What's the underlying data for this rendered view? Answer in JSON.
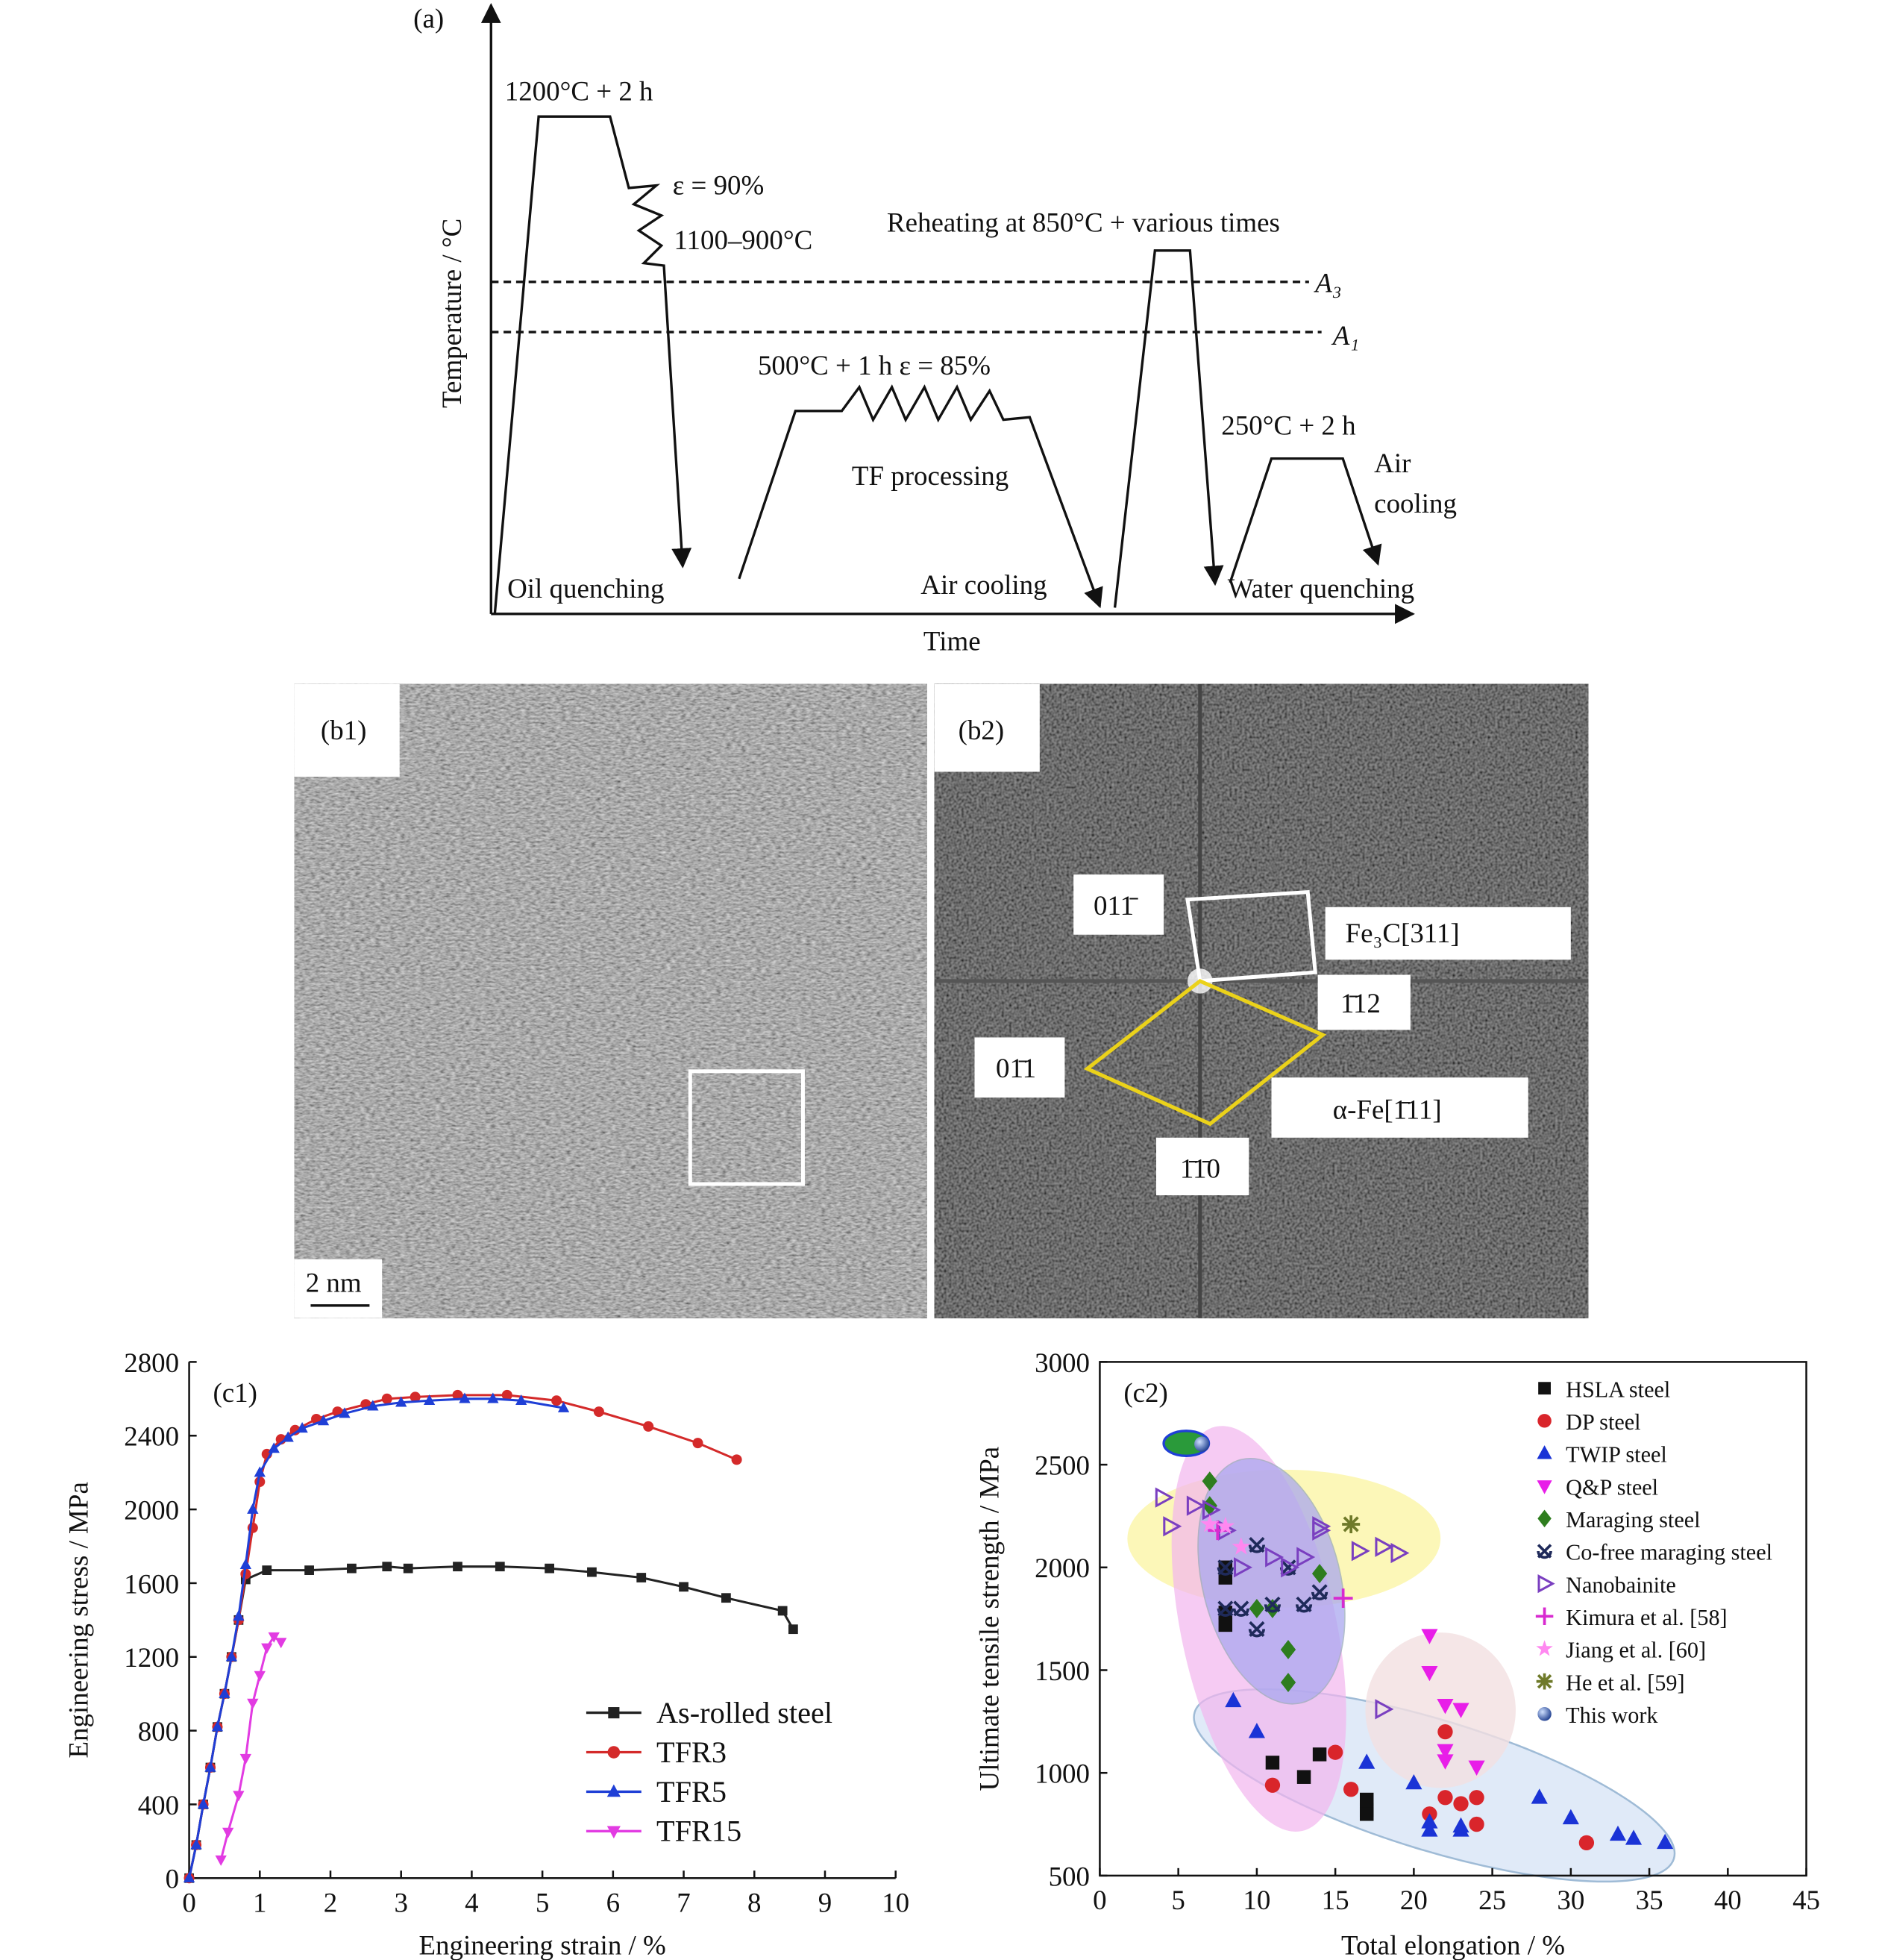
{
  "diagram": {
    "label": "(a)",
    "y_label": "Temperature / °C",
    "x_label": "Time",
    "annotations": [
      "1200°C + 2 h",
      "ε = 90%",
      "1100–900°C",
      "Reheating at 850°C + various times",
      "A₃",
      "A₁",
      "500°C + 1 h  ε = 85%",
      "TF processing",
      "250°C + 2 h",
      "Air",
      "cooling",
      "Oil quenching",
      "Air cooling",
      "Water quenching"
    ]
  },
  "micrographs": {
    "b1_label": "(b1)",
    "scale_bar": "2 nm",
    "b2_label": "(b2)",
    "spots": [
      "011̄",
      "1̄12",
      "01̄1",
      "1̄1̄0"
    ],
    "zones": [
      "Fe₃C[311]",
      "α-Fe[1̄11]"
    ]
  },
  "chart_data": [
    {
      "type": "line",
      "panel": "(c1)",
      "x_label": "Engineering strain / %",
      "y_label": "Engineering stress / MPa",
      "xlim": [
        0,
        10
      ],
      "xticks": [
        0,
        1,
        2,
        3,
        4,
        5,
        6,
        7,
        8,
        9,
        10
      ],
      "ylim": [
        0,
        2800
      ],
      "yticks": [
        0,
        400,
        800,
        1200,
        1600,
        2000,
        2400,
        2800
      ],
      "legend": "lower right",
      "series": [
        {
          "name": "As-rolled steel",
          "color": "#222222",
          "marker": "square",
          "x": [
            0,
            0.1,
            0.2,
            0.3,
            0.4,
            0.5,
            0.6,
            0.7,
            0.8,
            1.1,
            1.7,
            2.3,
            2.8,
            3.1,
            3.8,
            4.4,
            5.1,
            5.7,
            6.4,
            7.0,
            7.6,
            8.4,
            8.55
          ],
          "values": [
            0,
            180,
            400,
            600,
            820,
            1000,
            1200,
            1400,
            1620,
            1670,
            1670,
            1680,
            1690,
            1680,
            1690,
            1690,
            1680,
            1660,
            1630,
            1580,
            1520,
            1450,
            1350
          ]
        },
        {
          "name": "TFR3",
          "color": "#d42a2a",
          "marker": "circle",
          "x": [
            0,
            0.1,
            0.2,
            0.3,
            0.4,
            0.5,
            0.6,
            0.7,
            0.8,
            0.9,
            1.0,
            1.1,
            1.3,
            1.5,
            1.8,
            2.1,
            2.5,
            2.8,
            3.2,
            3.8,
            4.5,
            5.2,
            5.8,
            6.5,
            7.2,
            7.75
          ],
          "values": [
            0,
            180,
            400,
            600,
            820,
            1000,
            1200,
            1400,
            1650,
            1900,
            2150,
            2300,
            2380,
            2430,
            2490,
            2530,
            2570,
            2600,
            2610,
            2620,
            2620,
            2590,
            2530,
            2450,
            2360,
            2270
          ]
        },
        {
          "name": "TFR5",
          "color": "#1f3fd6",
          "marker": "triangle-up",
          "x": [
            0,
            0.1,
            0.2,
            0.3,
            0.4,
            0.5,
            0.6,
            0.7,
            0.8,
            0.9,
            1.0,
            1.2,
            1.4,
            1.6,
            1.9,
            2.2,
            2.6,
            3.0,
            3.4,
            3.9,
            4.3,
            4.7,
            5.3
          ],
          "values": [
            0,
            180,
            400,
            600,
            820,
            1000,
            1200,
            1420,
            1700,
            2000,
            2200,
            2330,
            2390,
            2440,
            2480,
            2520,
            2560,
            2580,
            2590,
            2600,
            2600,
            2590,
            2550
          ]
        },
        {
          "name": "TFR15",
          "color": "#e23be2",
          "marker": "triangle-down",
          "x": [
            0.45,
            0.55,
            0.7,
            0.8,
            0.9,
            1.0,
            1.1,
            1.2,
            1.3
          ],
          "values": [
            100,
            250,
            450,
            650,
            950,
            1100,
            1250,
            1310,
            1280
          ]
        }
      ]
    },
    {
      "type": "scatter",
      "panel": "(c2)",
      "x_label": "Total elongation / %",
      "y_label": "Ultimate tensile strength / MPa",
      "xlim": [
        0,
        45
      ],
      "xticks": [
        0,
        5,
        10,
        15,
        20,
        25,
        30,
        35,
        40,
        45
      ],
      "ylim": [
        500,
        3000
      ],
      "yticks": [
        500,
        1000,
        1500,
        2000,
        2500,
        3000
      ],
      "legend": "upper right",
      "series": [
        {
          "name": "HSLA steel",
          "color": "#111111",
          "marker": "square",
          "x": [
            8,
            8,
            8,
            8,
            11,
            13,
            14,
            17,
            17,
            17
          ],
          "values": [
            2000,
            1950,
            1780,
            1720,
            1050,
            980,
            1090,
            870,
            820,
            800
          ]
        },
        {
          "name": "DP steel",
          "color": "#d9252b",
          "marker": "circle",
          "x": [
            11,
            15,
            16,
            21,
            22,
            22,
            23,
            24,
            24,
            31
          ],
          "values": [
            940,
            1100,
            920,
            800,
            880,
            1200,
            850,
            880,
            750,
            660
          ]
        },
        {
          "name": "TWIP steel",
          "color": "#1a33d6",
          "marker": "triangle-up",
          "x": [
            8.5,
            10,
            17,
            20,
            21,
            21,
            23,
            23,
            28,
            30,
            33,
            34,
            36
          ],
          "values": [
            1350,
            1200,
            1050,
            950,
            720,
            760,
            720,
            740,
            880,
            780,
            700,
            680,
            660
          ]
        },
        {
          "name": "Q&P steel",
          "color": "#e81ee8",
          "marker": "triangle-down",
          "x": [
            21,
            21,
            22,
            23,
            22,
            24,
            22
          ],
          "values": [
            1670,
            1490,
            1330,
            1310,
            1110,
            1030,
            1060
          ]
        },
        {
          "name": "Maraging steel",
          "color": "#2e7d1e",
          "marker": "diamond",
          "x": [
            7,
            7,
            10,
            12,
            12,
            14,
            11
          ],
          "values": [
            2420,
            2300,
            1800,
            1600,
            1440,
            1970,
            1800
          ]
        },
        {
          "name": "Co-free maraging steel",
          "color": "#1f2a5a",
          "marker": "xcross",
          "x": [
            8,
            9,
            10,
            10,
            11,
            13,
            8,
            14,
            12
          ],
          "values": [
            2000,
            1800,
            2110,
            1700,
            1820,
            1820,
            1800,
            1880,
            2000
          ]
        },
        {
          "name": "Nanobainite",
          "color": "#7a3fc0",
          "marker": "triangle-right",
          "x": [
            4,
            4.5,
            6,
            7,
            9,
            11,
            12,
            13,
            14,
            16.5,
            18,
            19,
            14,
            8,
            18
          ],
          "values": [
            2340,
            2200,
            2300,
            2280,
            2000,
            2050,
            2000,
            2050,
            2200,
            2080,
            2100,
            2070,
            2180,
            2180,
            1310
          ]
        },
        {
          "name": "Kimura et al. [58]",
          "color": "#d82ad0",
          "marker": "plus",
          "x": [
            7.5,
            15.5
          ],
          "values": [
            2180,
            1850
          ]
        },
        {
          "name": "Jiang et al. [60]",
          "color": "#ff88f0",
          "marker": "star",
          "x": [
            7,
            8,
            9
          ],
          "values": [
            2210,
            2200,
            2100
          ]
        },
        {
          "name": "He et al. [59]",
          "color": "#6f7a2a",
          "marker": "asterisk",
          "x": [
            16
          ],
          "values": [
            2210
          ]
        },
        {
          "name": "This work",
          "color": "#1f5fbf",
          "marker": "sphere",
          "x": [
            6.5
          ],
          "values": [
            2600
          ]
        }
      ]
    }
  ]
}
